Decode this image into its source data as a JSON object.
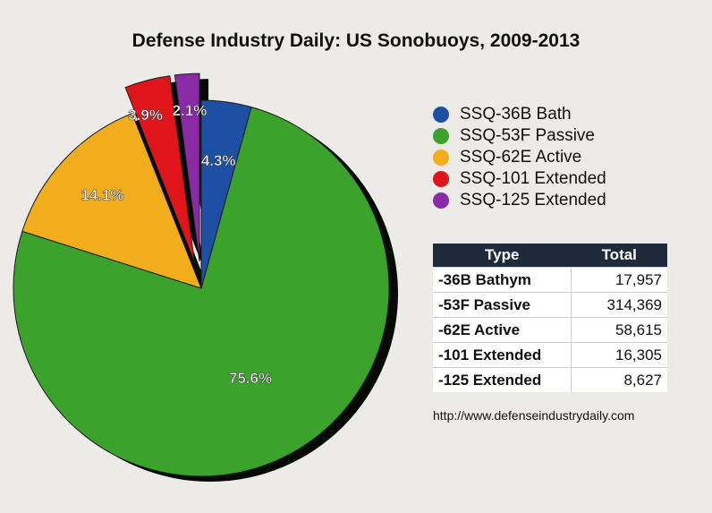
{
  "chart_data": {
    "type": "pie",
    "title": "Defense Industry Daily: US Sonobuoys, 2009-2013",
    "categories": [
      "SSQ-36B Bath",
      "SSQ-53F Passive",
      "SSQ-62E Active",
      "SSQ-101 Extended",
      "SSQ-125 Extended"
    ],
    "values": [
      4.3,
      75.6,
      14.1,
      3.9,
      2.1
    ],
    "value_labels": [
      "4.3%",
      "75.6%",
      "14.1%",
      "3.9%",
      "2.1%"
    ],
    "colors": [
      "#1d4fa3",
      "#3ba32b",
      "#f2ad1d",
      "#e0151c",
      "#8b2aa6"
    ],
    "exploded": [
      false,
      false,
      false,
      true,
      true
    ],
    "legend_position": "right"
  },
  "table": {
    "headers": [
      "Type",
      "Total"
    ],
    "rows": [
      [
        "-36B Bathym",
        "17,957"
      ],
      [
        "-53F Passive",
        "314,369"
      ],
      [
        "-62E Active",
        "58,615"
      ],
      [
        "-101 Extended",
        "16,305"
      ],
      [
        "-125 Extended",
        "8,627"
      ]
    ]
  },
  "source": "http://www.defenseindustrydaily.com"
}
